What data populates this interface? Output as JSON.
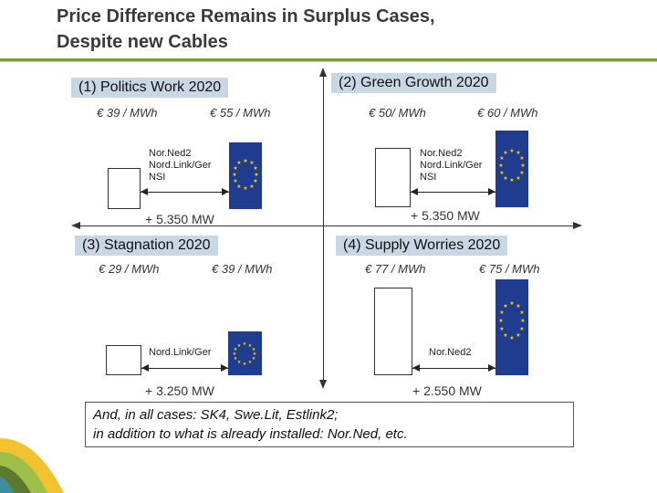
{
  "title": {
    "line1": "Price Difference Remains in Surplus Cases,",
    "line2": "Despite new Cables"
  },
  "quadrants": [
    {
      "label": "(1) Politics Work 2020",
      "price_left": "€ 39 / MWh",
      "price_right": "€ 55 / MWh",
      "cables": "Nor.Ned2\nNord.Link/Ger\nNSI",
      "capacity": "+ 5.350 MW"
    },
    {
      "label": "(2) Green Growth 2020",
      "price_left": "€ 50/ MWh",
      "price_right": "€ 60 / MWh",
      "cables": "Nor.Ned2\nNord.Link/Ger\nNSI",
      "capacity": "+ 5.350 MW"
    },
    {
      "label": "(3) Stagnation 2020",
      "price_left": "€ 29 / MWh",
      "price_right": "€ 39 / MWh",
      "cables": "Nord.Link/Ger",
      "capacity": "+ 3.250 MW"
    },
    {
      "label": "(4) Supply Worries 2020",
      "price_left": "€ 77 / MWh",
      "price_right": "€ 75 / MWh",
      "cables": "Nor.Ned2",
      "capacity": "+ 2.550 MW"
    }
  ],
  "note": {
    "line1": "And, in all cases: SK4, Swe.Lit, Estlink2;",
    "line2": "in addition to what is already installed: Nor.Ned, etc."
  },
  "colors": {
    "accent_green": "#7f9a3c",
    "label_bg": "#c9d6e3",
    "eu_blue": "#1f3c8f",
    "eu_star": "#f5d000"
  }
}
